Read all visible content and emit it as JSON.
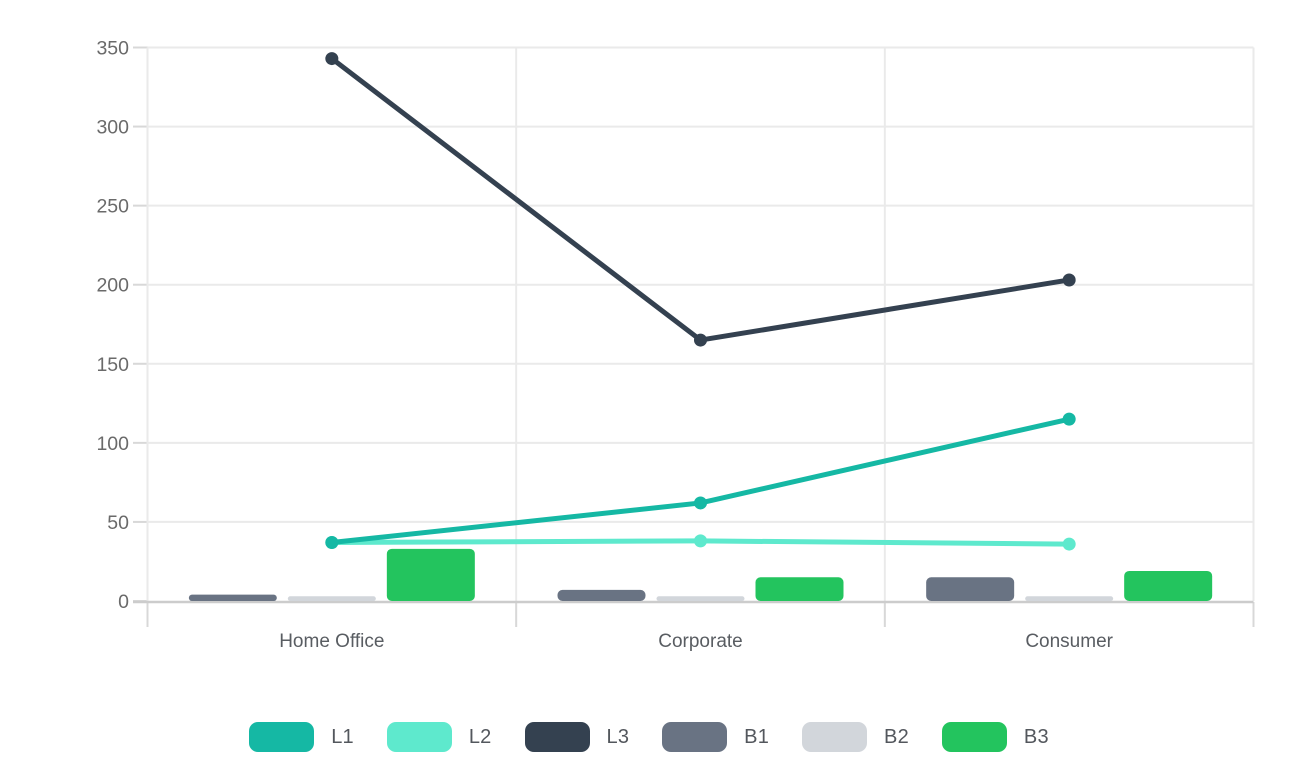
{
  "chart_data": {
    "type": "combo",
    "title": "",
    "categories": [
      "Home Office",
      "Corporate",
      "Consumer"
    ],
    "series": [
      {
        "name": "L1",
        "kind": "line",
        "color": "#15b8a4",
        "values": [
          37,
          62,
          115
        ]
      },
      {
        "name": "L2",
        "kind": "line",
        "color": "#5ee9cd",
        "values": [
          37,
          38,
          36
        ]
      },
      {
        "name": "L3",
        "kind": "line",
        "color": "#344150",
        "values": [
          343,
          165,
          203
        ]
      },
      {
        "name": "B1",
        "kind": "bar",
        "color": "#697383",
        "values": [
          4,
          7,
          15
        ]
      },
      {
        "name": "B2",
        "kind": "bar",
        "color": "#d2d6db",
        "values": [
          3,
          3,
          3
        ]
      },
      {
        "name": "B3",
        "kind": "bar",
        "color": "#23c45e",
        "values": [
          33,
          15,
          19
        ]
      }
    ],
    "ylim": [
      0,
      350
    ],
    "yticks": [
      0,
      50,
      100,
      150,
      200,
      250,
      300,
      350
    ],
    "xlabel": "",
    "ylabel": "",
    "grid": true,
    "legend_position": "bottom",
    "legend_labels": [
      "L1",
      "L2",
      "L3",
      "B1",
      "B2",
      "B3"
    ],
    "draw_order": [
      "B1",
      "B2",
      "B3",
      "L2",
      "L1",
      "L3"
    ]
  },
  "style_colors": {
    "background": "#ffffff",
    "grid_line": "#eaeaea",
    "axis_line": "#cccccc",
    "tick_mark": "#d8d8d8",
    "y_label_text": "#6a6a6a",
    "x_label_text": "#595d62",
    "legend_text": "#53575d"
  }
}
